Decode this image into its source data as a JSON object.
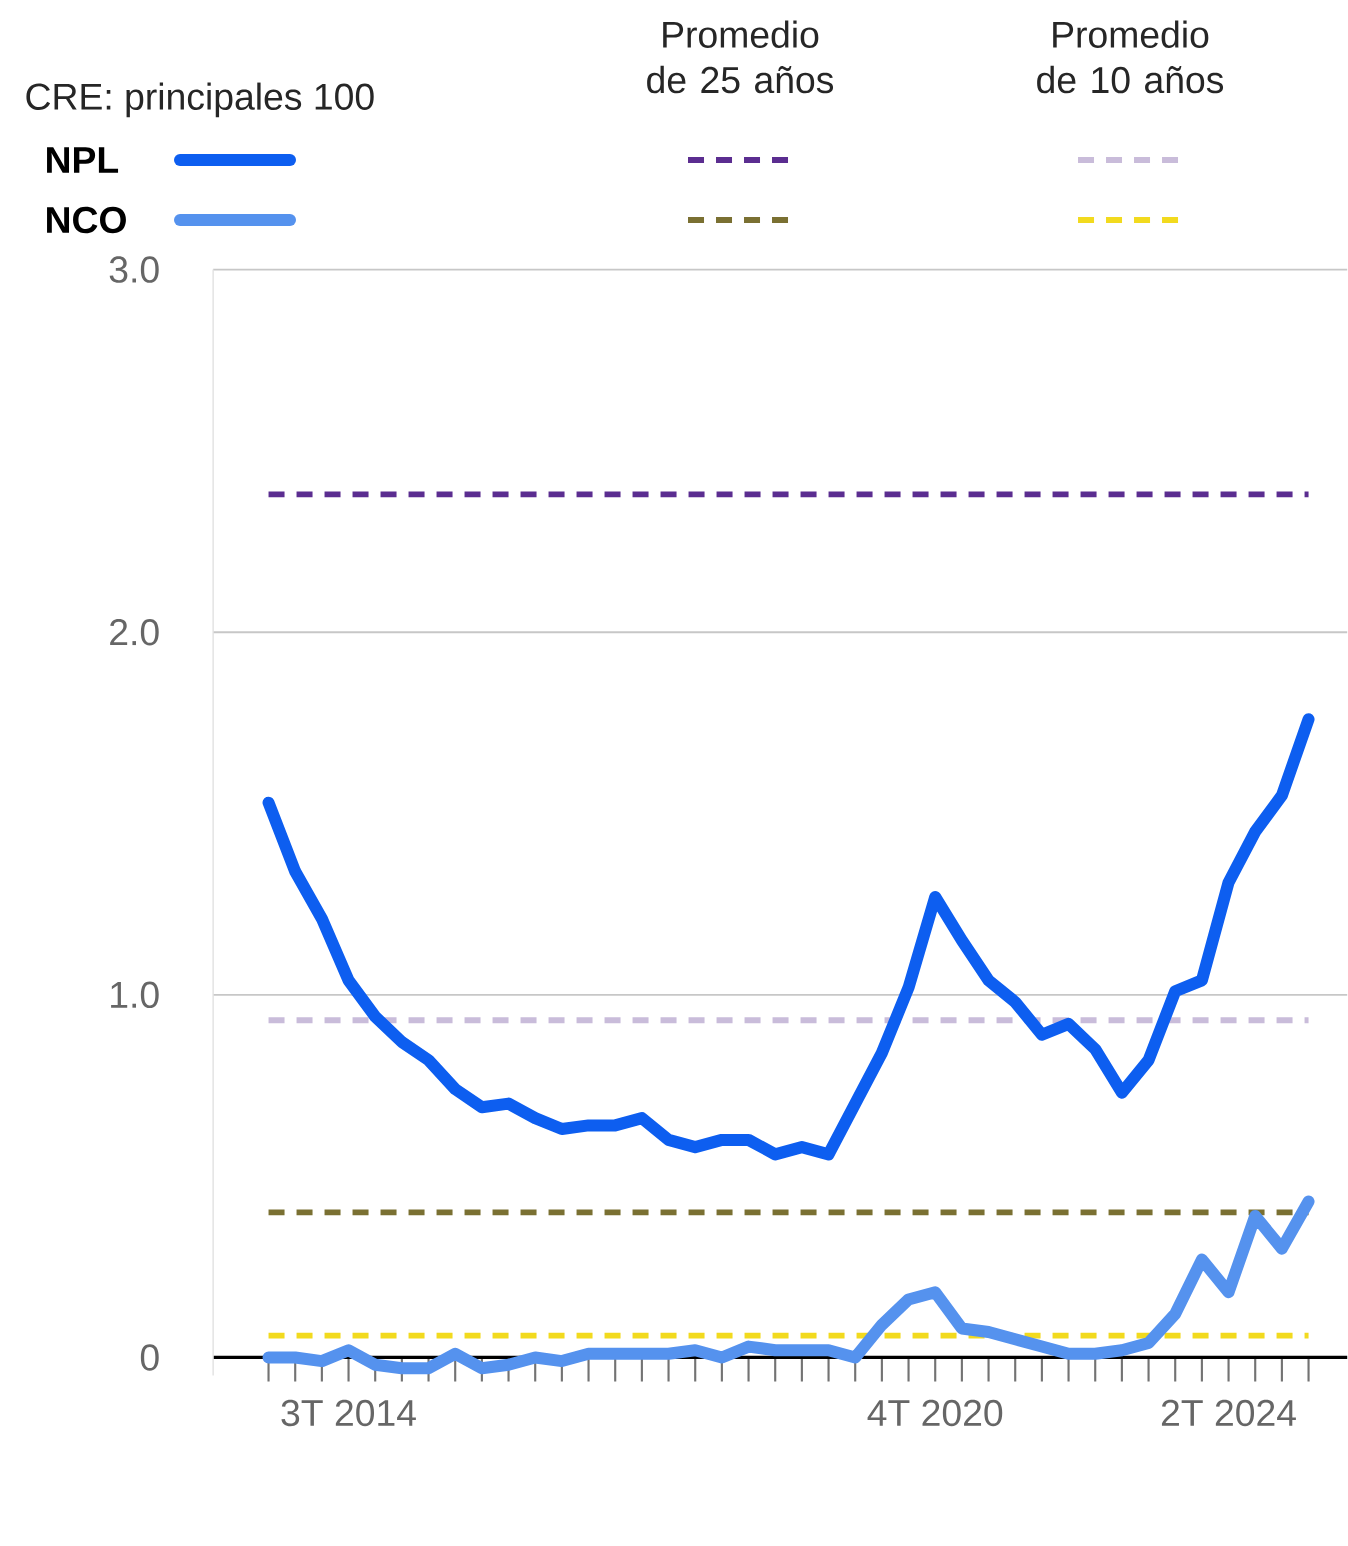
{
  "chart_data": {
    "type": "line",
    "legend_title": "CRE: principales 100",
    "categories": [
      null,
      null,
      null,
      "3T 2014",
      null,
      null,
      null,
      null,
      null,
      null,
      null,
      null,
      null,
      null,
      null,
      null,
      null,
      null,
      null,
      null,
      null,
      null,
      null,
      null,
      null,
      "4T 2020",
      null,
      null,
      null,
      null,
      null,
      null,
      null,
      null,
      null,
      null,
      "2T 2024",
      null,
      null,
      null
    ],
    "series": [
      {
        "name": "NPL",
        "color": "#0d5ef0",
        "values": [
          1.53,
          1.34,
          1.21,
          1.04,
          0.94,
          0.87,
          0.82,
          0.74,
          0.69,
          0.7,
          0.66,
          0.63,
          0.64,
          0.64,
          0.66,
          0.6,
          0.58,
          0.6,
          0.6,
          0.56,
          0.58,
          0.56,
          0.7,
          0.84,
          1.02,
          1.27,
          1.15,
          1.04,
          0.98,
          0.89,
          0.92,
          0.85,
          0.73,
          0.82,
          1.01,
          1.04,
          1.31,
          1.45,
          1.55,
          1.76
        ]
      },
      {
        "name": "NCO",
        "color": "#5592ee",
        "values": [
          0.0,
          0.0,
          -0.01,
          0.02,
          -0.02,
          -0.03,
          -0.03,
          0.01,
          -0.03,
          -0.02,
          0.0,
          -0.01,
          0.01,
          0.01,
          0.01,
          0.01,
          0.02,
          0.0,
          0.03,
          0.02,
          0.02,
          0.02,
          0.0,
          0.09,
          0.16,
          0.18,
          0.08,
          0.07,
          0.05,
          0.03,
          0.01,
          0.01,
          0.02,
          0.04,
          0.12,
          0.27,
          0.18,
          0.39,
          0.3,
          0.43
        ]
      }
    ],
    "ylim": [
      -0.05,
      3.0
    ],
    "yticks": [
      0,
      {
        "value": 1,
        "label": "1.0"
      },
      {
        "value": 2,
        "label": "2.0"
      },
      {
        "value": 3,
        "label": "3.0"
      }
    ],
    "grid": "y",
    "legend": "top",
    "annotations": [
      "Promedio de 25 años",
      "Promedio de 10 años"
    ],
    "ref_lines": [
      {
        "axis": "y",
        "value": 2.38,
        "color": "#5b2d90",
        "line_style": "dashed"
      },
      {
        "axis": "y",
        "value": 0.4,
        "color": "#7a7032",
        "line_style": "dashed"
      },
      {
        "axis": "y",
        "value": 0.93,
        "color": "#c9bcda",
        "line_style": "dashed"
      },
      {
        "axis": "y",
        "value": 0.06,
        "color": "#f2da1e",
        "line_style": "dashed"
      }
    ]
  }
}
